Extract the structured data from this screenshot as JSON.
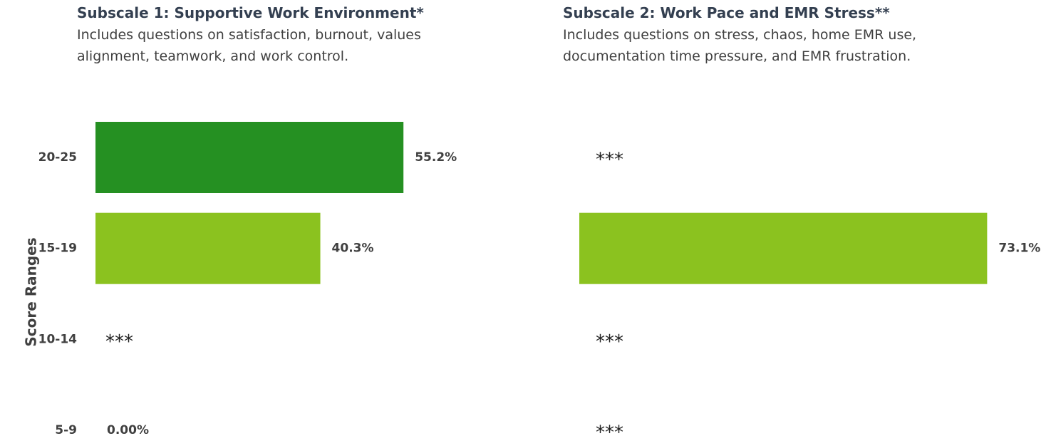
{
  "chart_data": [
    {
      "type": "bar",
      "orientation": "horizontal",
      "title": "Subscale 1: Supportive Work Environment*",
      "subtitle": "Includes questions on satisfaction, burnout, values alignment, teamwork, and work control.",
      "y_label": "Score Ranges",
      "categories": [
        "20-25",
        "15-19",
        "10-14",
        "5-9"
      ],
      "values": [
        55.2,
        40.3,
        null,
        0
      ],
      "value_labels": [
        "55.2%",
        "40.3%",
        "***",
        "0.00%"
      ],
      "colors": [
        "#259022",
        "#8bc21f",
        "#8bc21f",
        "#8bc21f"
      ],
      "xlim": [
        0,
        100
      ]
    },
    {
      "type": "bar",
      "orientation": "horizontal",
      "title": "Subscale 2: Work Pace and EMR Stress**",
      "subtitle": "Includes questions on stress, chaos, home EMR use, documentation time pressure, and EMR frustration.",
      "values": [
        null,
        73.1,
        null,
        null
      ],
      "value_labels": [
        "***",
        "73.1%",
        "***",
        "***"
      ],
      "colors": [
        "#259022",
        "#8bc21f",
        "#8bc21f",
        "#8bc21f"
      ],
      "xlim": [
        0,
        100
      ]
    }
  ]
}
